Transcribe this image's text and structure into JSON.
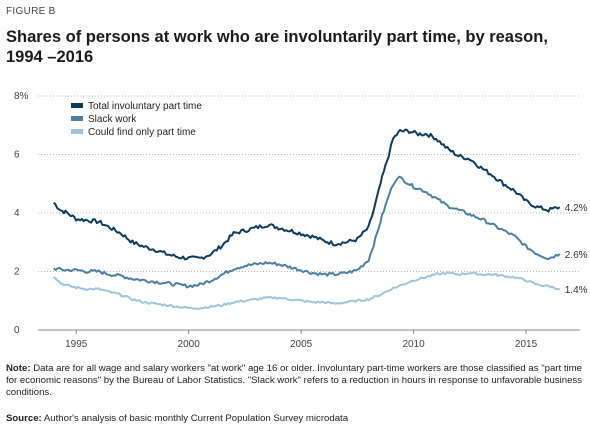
{
  "figure_label": "FIGURE B",
  "title": "Shares of persons at work who are involuntarily part time, by reason, 1994 –2016",
  "note": {
    "label": "Note:",
    "text": "Data are for all wage and salary workers \"at work\" age 16 or older. Involuntary part-time workers are those classified as \"part time for economic reasons\" by the Bureau of Labor Statistics. \"Slack work\" refers to a reduction in hours in response to unfavorable business conditions."
  },
  "source": {
    "label": "Source:",
    "text": "Author's analysis of basic monthly Current Population Survey microdata"
  },
  "chart_data": {
    "type": "line",
    "title": "Shares of persons at work who are involuntarily part time, by reason, 1994 –2016",
    "xlabel": "",
    "ylabel": "",
    "xlim": [
      1993.3,
      2017.4
    ],
    "ylim": [
      0,
      8
    ],
    "x_ticks": [
      1995,
      2000,
      2005,
      2010,
      2015
    ],
    "y_ticks": [
      0,
      2,
      4,
      6,
      8
    ],
    "y_tick_labels": [
      "0",
      "2",
      "4",
      "6",
      "8%"
    ],
    "grid": "horizontal dotted",
    "legend": "top-left",
    "series": [
      {
        "name": "Total involuntary part time",
        "color": "#0e3a5c",
        "end_label": "4.2%",
        "points": [
          [
            1994.0,
            4.35
          ],
          [
            1994.3,
            4.1
          ],
          [
            1994.6,
            4.0
          ],
          [
            1995.0,
            3.8
          ],
          [
            1995.5,
            3.75
          ],
          [
            1996.0,
            3.7
          ],
          [
            1996.5,
            3.5
          ],
          [
            1997.0,
            3.3
          ],
          [
            1997.5,
            3.0
          ],
          [
            1998.0,
            2.85
          ],
          [
            1998.5,
            2.75
          ],
          [
            1999.0,
            2.6
          ],
          [
            1999.5,
            2.5
          ],
          [
            2000.0,
            2.45
          ],
          [
            2000.5,
            2.45
          ],
          [
            2001.0,
            2.6
          ],
          [
            2001.5,
            2.9
          ],
          [
            2002.0,
            3.3
          ],
          [
            2002.5,
            3.4
          ],
          [
            2003.0,
            3.5
          ],
          [
            2003.5,
            3.6
          ],
          [
            2004.0,
            3.5
          ],
          [
            2004.5,
            3.4
          ],
          [
            2005.0,
            3.3
          ],
          [
            2005.5,
            3.2
          ],
          [
            2006.0,
            3.05
          ],
          [
            2006.5,
            2.95
          ],
          [
            2007.0,
            3.0
          ],
          [
            2007.5,
            3.1
          ],
          [
            2008.0,
            3.5
          ],
          [
            2008.3,
            4.3
          ],
          [
            2008.6,
            5.2
          ],
          [
            2008.9,
            6.0
          ],
          [
            2009.1,
            6.55
          ],
          [
            2009.4,
            6.8
          ],
          [
            2009.8,
            6.8
          ],
          [
            2010.2,
            6.7
          ],
          [
            2010.6,
            6.7
          ],
          [
            2011.0,
            6.55
          ],
          [
            2011.5,
            6.2
          ],
          [
            2012.0,
            5.95
          ],
          [
            2012.5,
            5.85
          ],
          [
            2013.0,
            5.55
          ],
          [
            2013.5,
            5.3
          ],
          [
            2014.0,
            5.0
          ],
          [
            2014.5,
            4.75
          ],
          [
            2015.0,
            4.4
          ],
          [
            2015.5,
            4.2
          ],
          [
            2016.0,
            4.1
          ],
          [
            2016.5,
            4.2
          ]
        ]
      },
      {
        "name": "Slack work",
        "color": "#4e7fa3",
        "end_label": "2.6%",
        "points": [
          [
            1994.0,
            2.1
          ],
          [
            1994.5,
            2.05
          ],
          [
            1995.0,
            2.05
          ],
          [
            1995.5,
            2.0
          ],
          [
            1996.0,
            2.0
          ],
          [
            1996.5,
            1.9
          ],
          [
            1997.0,
            1.85
          ],
          [
            1997.5,
            1.75
          ],
          [
            1998.0,
            1.7
          ],
          [
            1998.5,
            1.65
          ],
          [
            1999.0,
            1.6
          ],
          [
            1999.5,
            1.55
          ],
          [
            2000.0,
            1.5
          ],
          [
            2000.5,
            1.55
          ],
          [
            2001.0,
            1.7
          ],
          [
            2001.5,
            1.9
          ],
          [
            2002.0,
            2.1
          ],
          [
            2002.5,
            2.2
          ],
          [
            2003.0,
            2.25
          ],
          [
            2003.5,
            2.3
          ],
          [
            2004.0,
            2.25
          ],
          [
            2004.5,
            2.15
          ],
          [
            2005.0,
            2.05
          ],
          [
            2005.5,
            1.95
          ],
          [
            2006.0,
            1.9
          ],
          [
            2006.5,
            1.9
          ],
          [
            2007.0,
            1.95
          ],
          [
            2007.5,
            2.05
          ],
          [
            2008.0,
            2.4
          ],
          [
            2008.3,
            3.1
          ],
          [
            2008.6,
            3.9
          ],
          [
            2008.9,
            4.6
          ],
          [
            2009.1,
            5.0
          ],
          [
            2009.3,
            5.25
          ],
          [
            2009.6,
            5.1
          ],
          [
            2010.0,
            4.9
          ],
          [
            2010.5,
            4.75
          ],
          [
            2011.0,
            4.5
          ],
          [
            2011.5,
            4.25
          ],
          [
            2012.0,
            4.1
          ],
          [
            2012.5,
            3.95
          ],
          [
            2013.0,
            3.8
          ],
          [
            2013.5,
            3.6
          ],
          [
            2014.0,
            3.4
          ],
          [
            2014.5,
            3.2
          ],
          [
            2015.0,
            2.85
          ],
          [
            2015.5,
            2.6
          ],
          [
            2016.0,
            2.45
          ],
          [
            2016.5,
            2.6
          ]
        ]
      },
      {
        "name": "Could find only part time",
        "color": "#9ec4e2",
        "end_label": "1.4%",
        "points": [
          [
            1994.0,
            1.85
          ],
          [
            1994.3,
            1.6
          ],
          [
            1994.7,
            1.5
          ],
          [
            1995.0,
            1.45
          ],
          [
            1995.5,
            1.4
          ],
          [
            1996.0,
            1.4
          ],
          [
            1996.5,
            1.3
          ],
          [
            1997.0,
            1.2
          ],
          [
            1997.5,
            1.05
          ],
          [
            1998.0,
            0.95
          ],
          [
            1998.5,
            0.9
          ],
          [
            1999.0,
            0.85
          ],
          [
            1999.5,
            0.8
          ],
          [
            2000.0,
            0.75
          ],
          [
            2000.5,
            0.75
          ],
          [
            2001.0,
            0.8
          ],
          [
            2001.5,
            0.85
          ],
          [
            2002.0,
            0.95
          ],
          [
            2002.5,
            1.0
          ],
          [
            2003.0,
            1.05
          ],
          [
            2003.5,
            1.1
          ],
          [
            2004.0,
            1.1
          ],
          [
            2004.5,
            1.05
          ],
          [
            2005.0,
            1.0
          ],
          [
            2005.5,
            0.95
          ],
          [
            2006.0,
            0.95
          ],
          [
            2006.5,
            0.9
          ],
          [
            2007.0,
            0.95
          ],
          [
            2007.5,
            1.0
          ],
          [
            2008.0,
            1.05
          ],
          [
            2008.5,
            1.2
          ],
          [
            2009.0,
            1.4
          ],
          [
            2009.5,
            1.55
          ],
          [
            2010.0,
            1.7
          ],
          [
            2010.5,
            1.8
          ],
          [
            2011.0,
            1.9
          ],
          [
            2011.5,
            1.95
          ],
          [
            2012.0,
            1.9
          ],
          [
            2012.5,
            1.95
          ],
          [
            2013.0,
            1.9
          ],
          [
            2013.5,
            1.9
          ],
          [
            2014.0,
            1.85
          ],
          [
            2014.5,
            1.8
          ],
          [
            2015.0,
            1.7
          ],
          [
            2015.5,
            1.55
          ],
          [
            2016.0,
            1.5
          ],
          [
            2016.5,
            1.4
          ]
        ]
      }
    ]
  }
}
